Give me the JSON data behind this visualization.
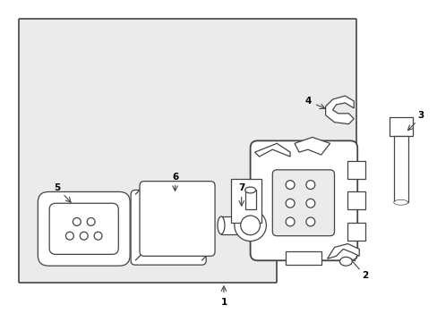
{
  "bg_light": "#ebebeb",
  "bg_white": "#ffffff",
  "line_color": "#444444",
  "fig_w": 4.89,
  "fig_h": 3.6,
  "dpi": 100
}
